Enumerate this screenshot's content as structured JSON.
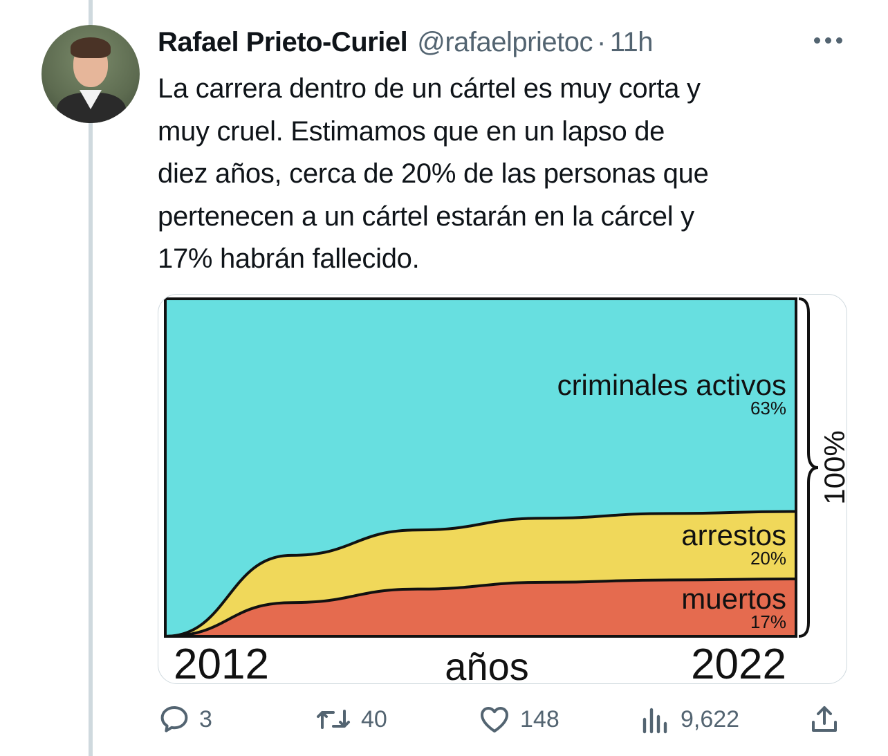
{
  "tweet": {
    "author_name": "Rafael Prieto-Curiel",
    "handle": "@rafaelprietoc",
    "separator": "·",
    "time": "11h",
    "text_lines": [
      "La carrera dentro de un cártel es muy corta y",
      "muy cruel. Estimamos que en un lapso de",
      "diez años, cerca de 20% de las personas que",
      "pertenecen a un cártel estarán en la cárcel y",
      "17% habrán fallecido."
    ]
  },
  "actions": {
    "replies": "3",
    "retweets": "40",
    "likes": "148",
    "views": "9,622"
  },
  "icons": [
    "more-icon",
    "reply-icon",
    "retweet-icon",
    "like-icon",
    "views-icon",
    "share-icon"
  ],
  "chart_data": {
    "type": "area",
    "x_start_label": "2012",
    "x_end_label": "2022",
    "xlabel": "años",
    "right_label": "100%",
    "stacked": true,
    "x": [
      2012,
      2014,
      2016,
      2018,
      2020,
      2022
    ],
    "series": [
      {
        "name": "muertos",
        "end_label": "17%",
        "color": "#e56b4f",
        "values": [
          0,
          10,
          14,
          16,
          16.7,
          17
        ]
      },
      {
        "name": "arrestos",
        "end_label": "20%",
        "color": "#f0d85a",
        "values": [
          0,
          14,
          17.5,
          19,
          19.7,
          20
        ]
      },
      {
        "name": "criminales activos",
        "end_label": "63%",
        "color": "#67dfe0",
        "values": [
          100,
          76,
          68.5,
          65,
          63.6,
          63
        ]
      }
    ],
    "ylim": [
      0,
      100
    ]
  }
}
